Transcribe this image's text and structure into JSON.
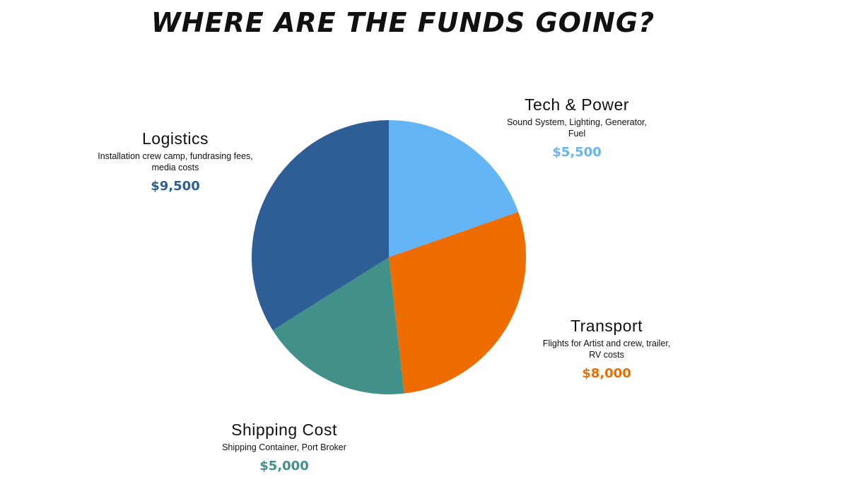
{
  "chart_data": {
    "type": "pie",
    "title": "WHERE ARE THE FUNDS GOING?",
    "categories": [
      "Tech & Power",
      "Transport",
      "Shipping Cost",
      "Logistics"
    ],
    "descriptions": [
      "Sound System, Lighting, Generator, Fuel",
      "Flights for Artist and crew, trailer, RV costs",
      "Shipping Container, Port Broker",
      "Installation crew camp, fundrasing fees, media costs"
    ],
    "values": [
      5500,
      8000,
      5000,
      9500
    ],
    "value_labels": [
      "$5,500",
      "$8,000",
      "$5,000",
      "$9,500"
    ],
    "colors": [
      "#64b5f6",
      "#ef6c00",
      "#42908a",
      "#2e5e96"
    ]
  }
}
